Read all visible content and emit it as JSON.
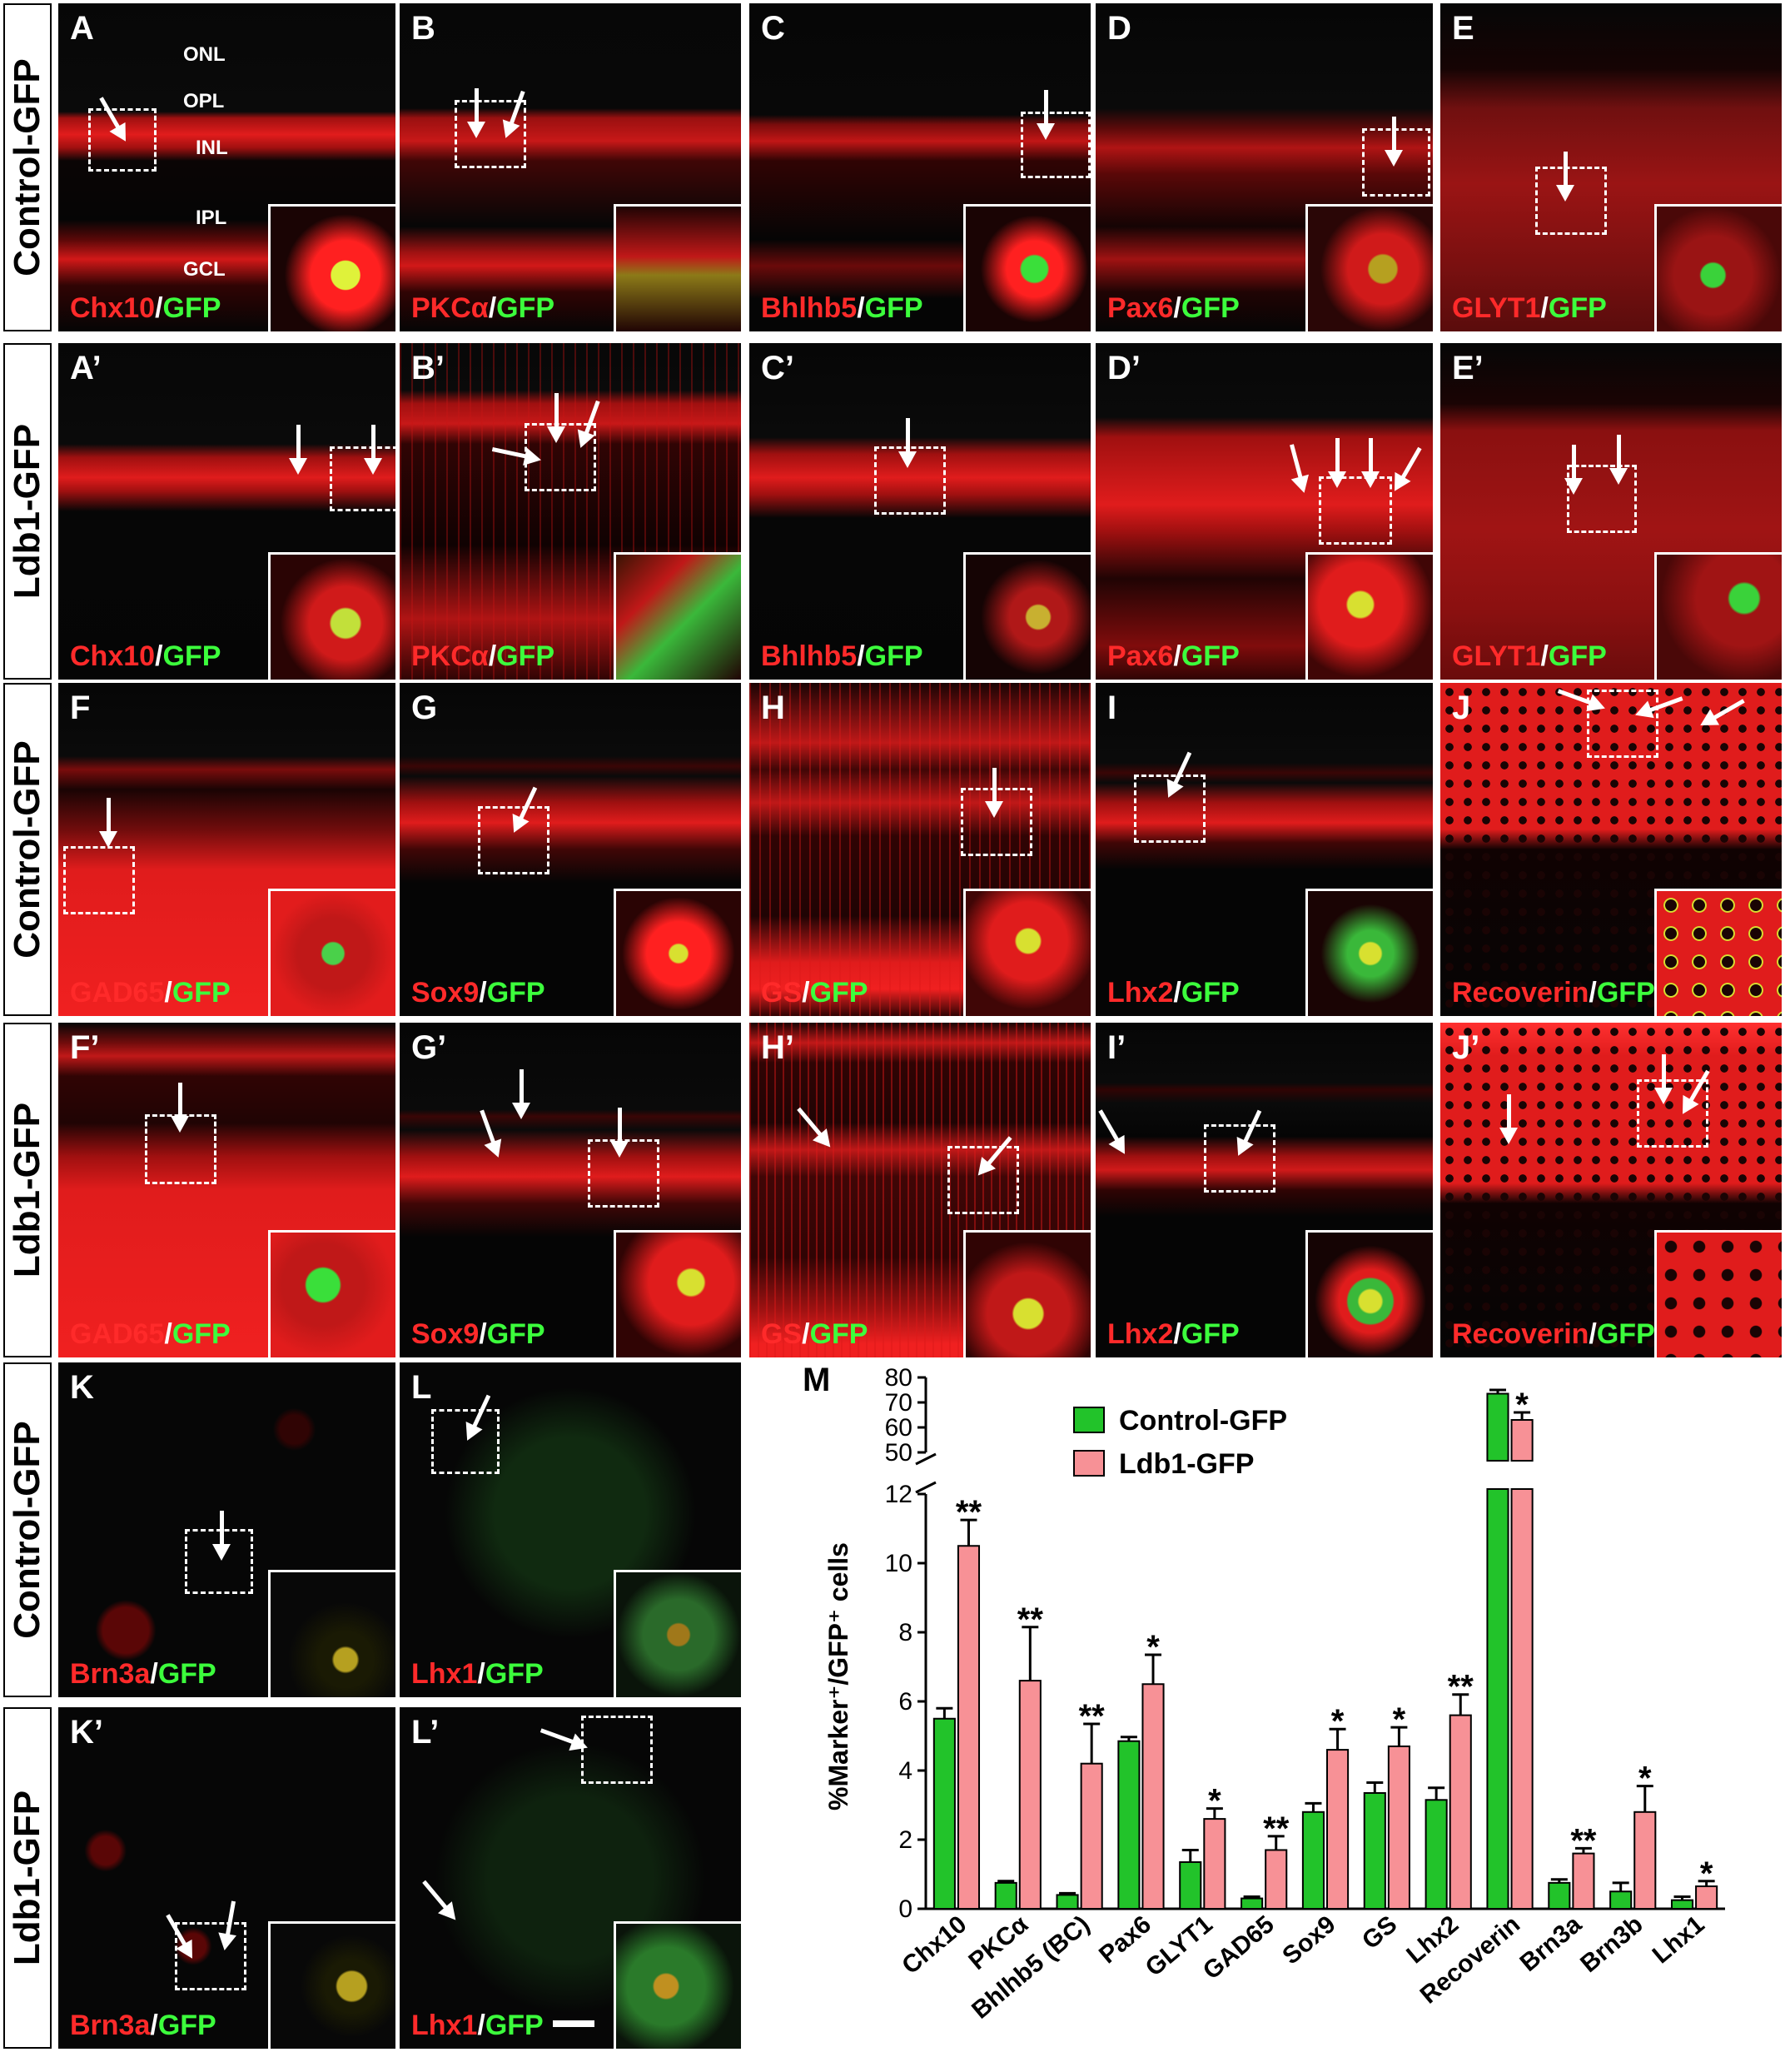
{
  "colors": {
    "red_stain": "#ff2a2a",
    "green_stain": "#3cff3c",
    "control_bar": "#22c32a",
    "ldb1_bar": "#f79196"
  },
  "row_labels": [
    "Control-GFP",
    "Ldb1-GFP",
    "Control-GFP",
    "Ldb1-GFP",
    "Control-GFP",
    "Ldb1-GFP"
  ],
  "layers": [
    "ONL",
    "OPL",
    "INL",
    "IPL",
    "GCL"
  ],
  "panels": [
    {
      "label": "A",
      "marker": "Chx10",
      "sep": "/",
      "gfp": "GFP"
    },
    {
      "label": "B",
      "marker": "PKCα",
      "sep": "/",
      "gfp": "GFP"
    },
    {
      "label": "C",
      "marker": "Bhlhb5",
      "sep": "/",
      "gfp": "GFP"
    },
    {
      "label": "D",
      "marker": "Pax6",
      "sep": "/",
      "gfp": "GFP"
    },
    {
      "label": "E",
      "marker": "GLYT1",
      "sep": "/",
      "gfp": "GFP"
    },
    {
      "label": "A’",
      "marker": "Chx10",
      "sep": "/",
      "gfp": "GFP"
    },
    {
      "label": "B’",
      "marker": "PKCα",
      "sep": "/",
      "gfp": "GFP"
    },
    {
      "label": "C’",
      "marker": "Bhlhb5",
      "sep": "/",
      "gfp": "GFP"
    },
    {
      "label": "D’",
      "marker": "Pax6",
      "sep": "/",
      "gfp": "GFP"
    },
    {
      "label": "E’",
      "marker": "GLYT1",
      "sep": "/",
      "gfp": "GFP"
    },
    {
      "label": "F",
      "marker": "GAD65",
      "sep": "/",
      "gfp": "GFP"
    },
    {
      "label": "G",
      "marker": "Sox9",
      "sep": "/",
      "gfp": "GFP"
    },
    {
      "label": "H",
      "marker": "GS",
      "sep": "/",
      "gfp": "GFP"
    },
    {
      "label": "I",
      "marker": "Lhx2",
      "sep": "/",
      "gfp": "GFP"
    },
    {
      "label": "J",
      "marker": "Recoverin",
      "sep": "/",
      "gfp": "GFP"
    },
    {
      "label": "F’",
      "marker": "GAD65",
      "sep": "/",
      "gfp": "GFP"
    },
    {
      "label": "G’",
      "marker": "Sox9",
      "sep": "/",
      "gfp": "GFP"
    },
    {
      "label": "H’",
      "marker": "GS",
      "sep": "/",
      "gfp": "GFP"
    },
    {
      "label": "I’",
      "marker": "Lhx2",
      "sep": "/",
      "gfp": "GFP"
    },
    {
      "label": "J’",
      "marker": "Recoverin",
      "sep": "/",
      "gfp": "GFP"
    },
    {
      "label": "K",
      "marker": "Brn3a",
      "sep": "/",
      "gfp": "GFP"
    },
    {
      "label": "L",
      "marker": "Lhx1",
      "sep": "/",
      "gfp": "GFP"
    },
    {
      "label": "K’",
      "marker": "Brn3a",
      "sep": "/",
      "gfp": "GFP"
    },
    {
      "label": "L’",
      "marker": "Lhx1",
      "sep": "/",
      "gfp": "GFP"
    }
  ],
  "chart_data": {
    "type": "bar",
    "panel_label": "M",
    "ylabel": "%Marker⁺/GFP⁺ cells",
    "y_axis_break": true,
    "ylim_lower": [
      0,
      12
    ],
    "ylim_upper": [
      50,
      80
    ],
    "yticks_lower": [
      0,
      2,
      4,
      6,
      8,
      10,
      12
    ],
    "yticks_upper": [
      50,
      60,
      70,
      80
    ],
    "categories": [
      "Chx10",
      "PKCα",
      "Bhlhb5 (BC)",
      "Pax6",
      "GLYT1",
      "GAD65",
      "Sox9",
      "GS",
      "Lhx2",
      "Recoverin",
      "Brn3a",
      "Brn3b",
      "Lhx1"
    ],
    "series": [
      {
        "name": "Control-GFP",
        "color": "#22c32a",
        "values": [
          5.5,
          0.75,
          0.4,
          4.85,
          1.35,
          0.3,
          2.8,
          3.35,
          3.15,
          73.5,
          0.75,
          0.5,
          0.25
        ],
        "errors": [
          0.3,
          0.05,
          0.05,
          0.12,
          0.35,
          0.05,
          0.25,
          0.3,
          0.35,
          1.5,
          0.1,
          0.25,
          0.1
        ]
      },
      {
        "name": "Ldb1-GFP",
        "color": "#f79196",
        "values": [
          10.5,
          6.6,
          4.2,
          6.5,
          2.6,
          1.7,
          4.6,
          4.7,
          5.6,
          63.0,
          1.6,
          2.8,
          0.65
        ],
        "errors": [
          0.75,
          1.55,
          1.15,
          0.85,
          0.3,
          0.4,
          0.6,
          0.55,
          0.6,
          3.0,
          0.15,
          0.75,
          0.15
        ]
      }
    ],
    "significance": [
      "**",
      "**",
      "**",
      "*",
      "*",
      "**",
      "*",
      "*",
      "**",
      "*",
      "**",
      "*",
      "*"
    ]
  }
}
